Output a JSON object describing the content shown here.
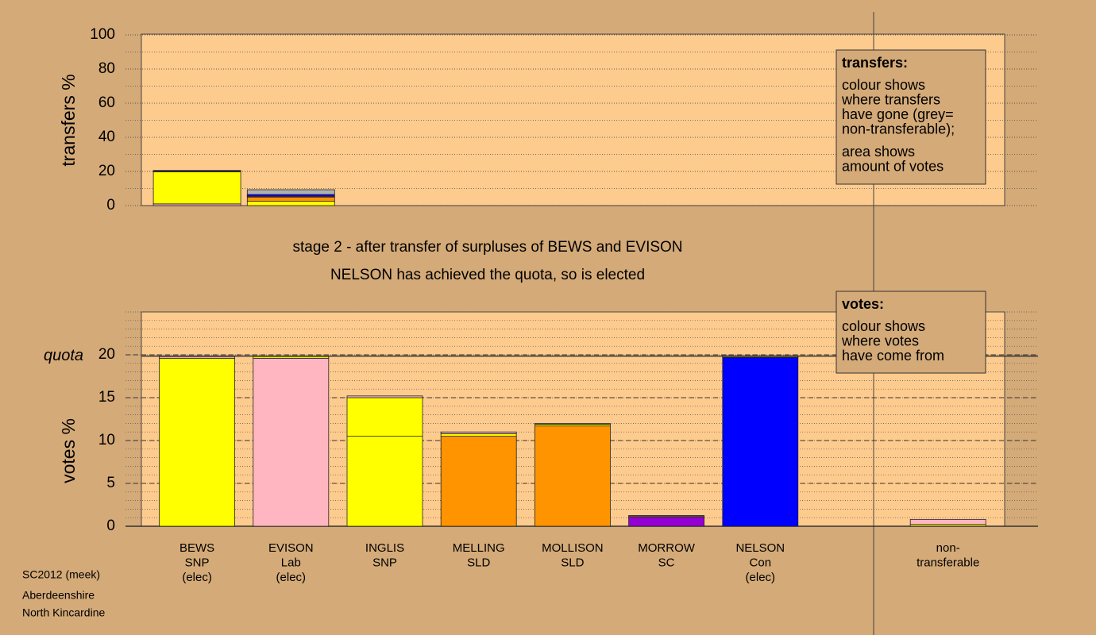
{
  "chart_data": [
    {
      "type": "bar",
      "stacked": true,
      "ylabel": "transfers %",
      "categories": [
        "BEWS",
        "EVISON"
      ],
      "ylim": [
        0,
        100
      ],
      "yticks": [
        0,
        20,
        40,
        60,
        80,
        100
      ],
      "grid": true,
      "series": [
        {
          "color": "#ffb6c1",
          "values": [
            1.0,
            null
          ]
        },
        {
          "color": "#ffff00",
          "values": [
            18.8,
            2.5
          ]
        },
        {
          "color": "#ff9400",
          "values": [
            0.3,
            2.5
          ]
        },
        {
          "color": "#9400d3",
          "values": [
            0.2,
            0.5
          ]
        },
        {
          "color": "#0000ff",
          "values": [
            0.3,
            1.0
          ]
        },
        {
          "color": "#b0b0b0",
          "values": [
            null,
            2.8
          ]
        }
      ]
    },
    {
      "type": "bar",
      "stacked": true,
      "ylabel": "votes %",
      "categories": [
        [
          "BEWS",
          "SNP",
          "(elec)"
        ],
        [
          "EVISON",
          "Lab",
          "(elec)"
        ],
        [
          "INGLIS",
          "SNP"
        ],
        [
          "MELLING",
          "SLD"
        ],
        [
          "MOLLISON",
          "SLD"
        ],
        [
          "MORROW",
          "SC"
        ],
        [
          "NELSON",
          "Con",
          "(elec)"
        ],
        null,
        [
          "non-",
          "transferable"
        ]
      ],
      "ylim": [
        0,
        25
      ],
      "yticks": [
        0,
        5,
        10,
        15,
        20
      ],
      "grid": true,
      "quota": 19.85,
      "quota_label": "quota",
      "series": [
        {
          "colors": [
            "#ffff00",
            "#ffb6c1",
            "#ffff00",
            "#ff9400",
            "#ff9400",
            "#9400d3",
            "#0000ff",
            null,
            null
          ],
          "values": [
            19.6,
            19.6,
            10.5,
            10.5,
            11.7,
            1.1,
            19.7,
            null,
            null
          ]
        },
        {
          "color": "#ffff00",
          "values": [
            null,
            0.2,
            4.5,
            0.3,
            0.2,
            0.1,
            0.1,
            null,
            0.2
          ]
        },
        {
          "color": "#ffb6c1",
          "values": [
            0.2,
            null,
            0.2,
            0.2,
            0.1,
            0.05,
            0.1,
            null,
            0.6
          ]
        }
      ]
    }
  ],
  "captions": [
    "stage 2 - after transfer of surpluses of BEWS and EVISON",
    "NELSON has achieved the quota, so is elected"
  ],
  "transfers_note": {
    "heading": "transfers:",
    "paragraphs": [
      [
        "colour shows",
        "where transfers",
        "have gone (grey=",
        "non-transferable);"
      ],
      [
        "area shows",
        "amount of votes"
      ]
    ]
  },
  "votes_note": {
    "heading": "votes:",
    "paragraphs": [
      [
        "colour shows",
        "where votes",
        "have come from"
      ]
    ]
  },
  "footer": [
    "SC2012 (meek)",
    "Aberdeenshire",
    "North Kincardine"
  ]
}
